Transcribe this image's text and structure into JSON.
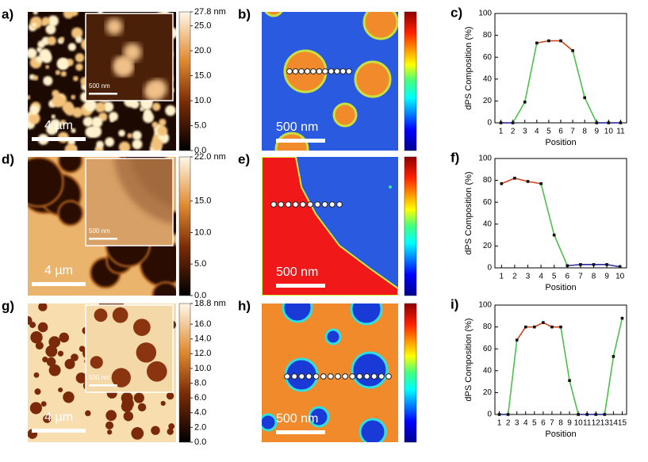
{
  "figure": {
    "panels": [
      {
        "label": "a)",
        "kind": "afm",
        "scale_bar": "4 µm",
        "inset_scale_bar": "500 nm",
        "colorbar": {
          "lim": [
            0,
            27.8
          ],
          "ticks": [
            {
              "value": 27.8,
              "label": "27.8 nm"
            },
            {
              "value": 25,
              "label": "25.0"
            },
            {
              "value": 20,
              "label": "20.0"
            },
            {
              "value": 15,
              "label": "15.0"
            },
            {
              "value": 10,
              "label": "10.0"
            },
            {
              "value": 5,
              "label": "5.0"
            },
            {
              "value": 0,
              "label": "0.0"
            }
          ]
        }
      },
      {
        "label": "b)",
        "kind": "fluorescence",
        "scale_bar": "500 nm"
      },
      {
        "label": "d)",
        "kind": "afm",
        "scale_bar": "4 µm",
        "inset_scale_bar": "500 nm",
        "colorbar": {
          "lim": [
            0,
            22
          ],
          "ticks": [
            {
              "value": 22,
              "label": "22.0 nm"
            },
            {
              "value": 15,
              "label": "15.0"
            },
            {
              "value": 10,
              "label": "10.0"
            },
            {
              "value": 5,
              "label": "5.0"
            },
            {
              "value": 0,
              "label": "0.0"
            }
          ]
        }
      },
      {
        "label": "e)",
        "kind": "fluorescence",
        "scale_bar": "500 nm"
      },
      {
        "label": "g)",
        "kind": "afm",
        "scale_bar": "4 µm",
        "inset_scale_bar": "500 nm",
        "colorbar": {
          "lim": [
            0,
            18.8
          ],
          "ticks": [
            {
              "value": 18.8,
              "label": "18.8 nm"
            },
            {
              "value": 16,
              "label": "16.0"
            },
            {
              "value": 14,
              "label": "14.0"
            },
            {
              "value": 12,
              "label": "12.0"
            },
            {
              "value": 10,
              "label": "10.0"
            },
            {
              "value": 8,
              "label": "8.0"
            },
            {
              "value": 6,
              "label": "6.0"
            },
            {
              "value": 4,
              "label": "4.0"
            },
            {
              "value": 2,
              "label": "2.0"
            },
            {
              "value": 0,
              "label": "0.0"
            }
          ]
        }
      },
      {
        "label": "h)",
        "kind": "fluorescence",
        "scale_bar": "500 nm"
      }
    ]
  },
  "chart_data": [
    {
      "type": "line",
      "label": "c)",
      "xlabel": "Position",
      "ylabel": "dPS Composition (%)",
      "x": [
        1,
        2,
        3,
        4,
        5,
        6,
        7,
        8,
        9,
        10,
        11
      ],
      "values": [
        0,
        0,
        19,
        73,
        75,
        75,
        66,
        23,
        0,
        0,
        0
      ],
      "segment_colors": [
        "#2a2aa0",
        "#4cc04c",
        "#4cc04c",
        "#d0441a",
        "#d0441a",
        "#d0441a",
        "#4cc04c",
        "#4cc04c",
        "#2a2aa0",
        "#2a2aa0"
      ],
      "xlim": [
        0.5,
        11.5
      ],
      "xticks": [
        1,
        2,
        3,
        4,
        5,
        6,
        7,
        8,
        9,
        10,
        11
      ],
      "ylim": [
        0,
        100
      ],
      "yticks": [
        0,
        20,
        40,
        60,
        80,
        100
      ]
    },
    {
      "type": "line",
      "label": "f)",
      "xlabel": "Position",
      "ylabel": "dPS Composition (%)",
      "x": [
        1,
        2,
        3,
        4,
        5,
        6,
        7,
        8,
        9,
        10
      ],
      "values": [
        77,
        82,
        79,
        77,
        30,
        2,
        3,
        3,
        3,
        1
      ],
      "segment_colors": [
        "#d0441a",
        "#d0441a",
        "#d0441a",
        "#4cc04c",
        "#4cc04c",
        "#2a2aa0",
        "#2a2aa0",
        "#2a2aa0",
        "#2a2aa0"
      ],
      "xlim": [
        0.5,
        10.5
      ],
      "xticks": [
        1,
        2,
        3,
        4,
        5,
        6,
        7,
        8,
        9,
        10
      ],
      "ylim": [
        0,
        100
      ],
      "yticks": [
        0,
        20,
        40,
        60,
        80,
        100
      ]
    },
    {
      "type": "line",
      "label": "i)",
      "xlabel": "Position",
      "ylabel": "dPS Composition (%)",
      "x": [
        1,
        2,
        3,
        4,
        5,
        6,
        7,
        8,
        9,
        10,
        11,
        12,
        13,
        14,
        15
      ],
      "values": [
        0,
        0,
        68,
        80,
        80,
        84,
        80,
        80,
        31,
        0,
        0,
        0,
        0,
        53,
        88
      ],
      "segment_colors": [
        "#2a2aa0",
        "#4cc04c",
        "#d0441a",
        "#d0441a",
        "#d0441a",
        "#d0441a",
        "#d0441a",
        "#4cc04c",
        "#4cc04c",
        "#2a2aa0",
        "#2a2aa0",
        "#2a2aa0",
        "#4cc04c",
        "#4cc04c"
      ],
      "xlim": [
        0.5,
        15.5
      ],
      "xticks": [
        1,
        2,
        3,
        4,
        5,
        6,
        7,
        8,
        9,
        10,
        11,
        12,
        13,
        14,
        15
      ],
      "ylim": [
        0,
        100
      ],
      "yticks": [
        0,
        20,
        40,
        60,
        80,
        100
      ]
    }
  ]
}
